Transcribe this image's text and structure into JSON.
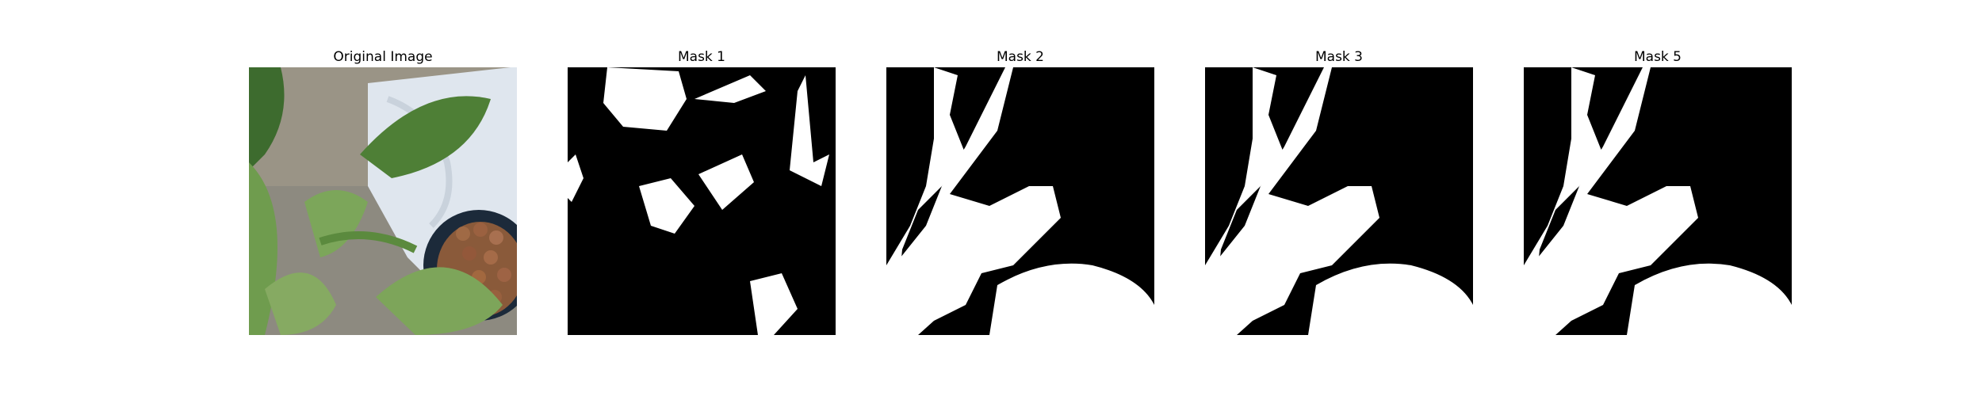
{
  "figure": {
    "panels": [
      {
        "title": "Original Image",
        "kind": "photo",
        "icon": "plant-photo-icon"
      },
      {
        "title": "Mask 1",
        "kind": "mask",
        "icon": "binary-mask-icon"
      },
      {
        "title": "Mask 2",
        "kind": "mask",
        "icon": "binary-mask-icon"
      },
      {
        "title": "Mask 3",
        "kind": "mask",
        "icon": "binary-mask-icon"
      },
      {
        "title": "Mask 5",
        "kind": "mask",
        "icon": "binary-mask-icon"
      }
    ],
    "colors": {
      "background": "#ffffff",
      "mask_fg": "#ffffff",
      "mask_bg": "#000000"
    }
  }
}
